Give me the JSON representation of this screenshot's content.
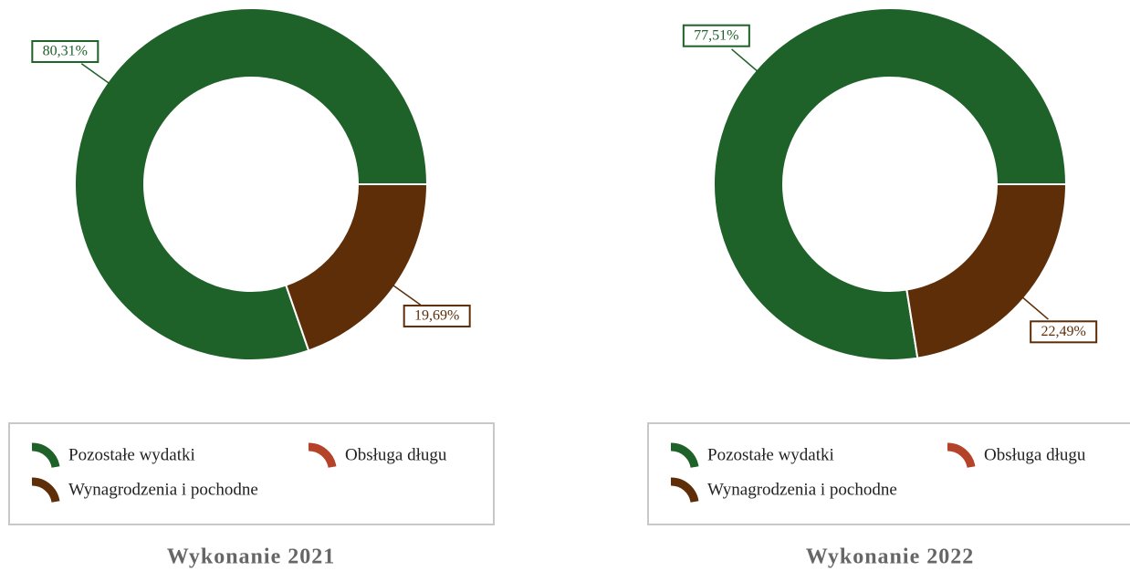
{
  "chart_data": [
    {
      "type": "donut",
      "title": "Wykonanie 2021",
      "categories": [
        "Pozostałe wydatki",
        "Obsługa długu",
        "Wynagrodzenia i pochodne"
      ],
      "values": [
        80.31,
        0,
        19.69
      ],
      "value_labels": [
        "80,31%",
        null,
        "19,69%"
      ],
      "colors": [
        "#1e6129",
        "#b5432a",
        "#5e2e08"
      ]
    },
    {
      "type": "donut",
      "title": "Wykonanie 2022",
      "categories": [
        "Pozostałe wydatki",
        "Obsługa długu",
        "Wynagrodzenia i pochodne"
      ],
      "values": [
        77.51,
        0,
        22.49
      ],
      "value_labels": [
        "77,51%",
        null,
        "22,49%"
      ],
      "colors": [
        "#1e6129",
        "#b5432a",
        "#5e2e08"
      ]
    }
  ]
}
